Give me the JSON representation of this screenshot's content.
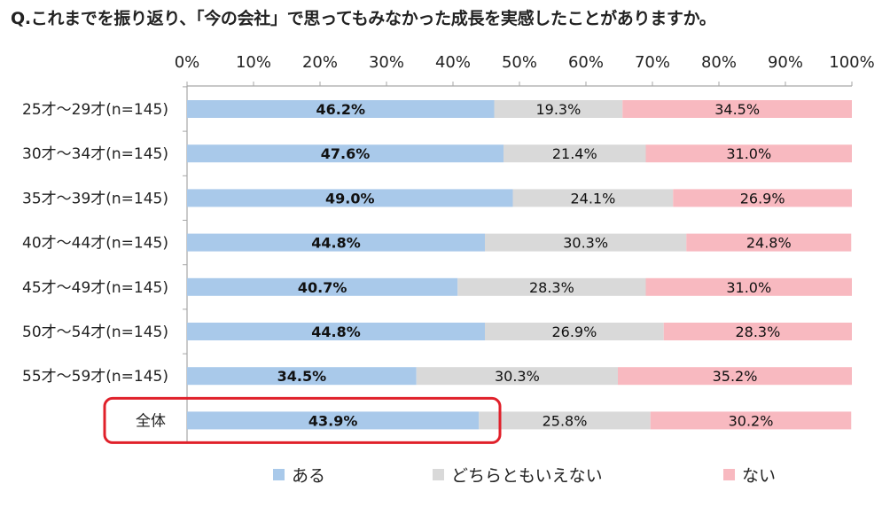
{
  "title": "Q.これまでを振り返り、「今の会社」で思ってもみなかった成長を実感したことがありますか。",
  "colors": {
    "aru": "#a9c9ea",
    "dochira": "#d9d9d9",
    "nai": "#f8b9c0",
    "highlight": "#e0202a",
    "axis": "#a6a6a6"
  },
  "chart_data": {
    "type": "bar",
    "orientation": "horizontal",
    "stacked": true,
    "percent": true,
    "xlim": [
      0,
      100
    ],
    "x_ticks": [
      "0%",
      "10%",
      "20%",
      "30%",
      "40%",
      "50%",
      "60%",
      "70%",
      "80%",
      "90%",
      "100%"
    ],
    "categories": [
      "25才～29才(n=145)",
      "30才～34才(n=145)",
      "35才～39才(n=145)",
      "40才～44才(n=145)",
      "45才～49才(n=145)",
      "50才～54才(n=145)",
      "55才～59才(n=145)",
      "全体"
    ],
    "series": [
      {
        "name": "ある",
        "values": [
          46.2,
          47.6,
          49.0,
          44.8,
          40.7,
          44.8,
          34.5,
          43.9
        ],
        "labels": [
          "46.2%",
          "47.6%",
          "49.0%",
          "44.8%",
          "40.7%",
          "44.8%",
          "34.5%",
          "43.9%"
        ]
      },
      {
        "name": "どちらともいえない",
        "values": [
          19.3,
          21.4,
          24.1,
          30.3,
          28.3,
          26.9,
          30.3,
          25.8
        ],
        "labels": [
          "19.3%",
          "21.4%",
          "24.1%",
          "30.3%",
          "28.3%",
          "26.9%",
          "30.3%",
          "25.8%"
        ]
      },
      {
        "name": "ない",
        "values": [
          34.5,
          31.0,
          26.9,
          24.8,
          31.0,
          28.3,
          35.2,
          30.2
        ],
        "labels": [
          "34.5%",
          "31.0%",
          "26.9%",
          "24.8%",
          "31.0%",
          "28.3%",
          "35.2%",
          "30.2%"
        ]
      }
    ],
    "highlighted_category": "全体",
    "legend_position": "bottom",
    "grid": true
  }
}
